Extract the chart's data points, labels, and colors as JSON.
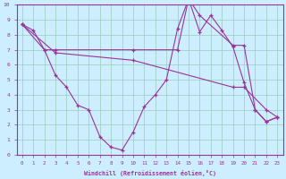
{
  "background_color": "#cceeff",
  "line_color": "#993399",
  "grid_color": "#99ccbb",
  "xlabel": "Windchill (Refroidissement éolien,°C)",
  "xlim": [
    -0.5,
    23.5
  ],
  "ylim": [
    0,
    10
  ],
  "xticks": [
    0,
    1,
    2,
    3,
    4,
    5,
    6,
    7,
    8,
    9,
    10,
    11,
    12,
    13,
    14,
    15,
    16,
    17,
    18,
    19,
    20,
    21,
    22,
    23
  ],
  "yticks": [
    0,
    1,
    2,
    3,
    4,
    5,
    6,
    7,
    8,
    9,
    10
  ],
  "series": [
    {
      "x": [
        0,
        1,
        2,
        3,
        4,
        5,
        6,
        7,
        8,
        9,
        10,
        11,
        12,
        13,
        14,
        15,
        16,
        17,
        18,
        19,
        20,
        21,
        22,
        23
      ],
      "y": [
        8.7,
        8.3,
        7.0,
        5.3,
        4.5,
        3.3,
        3.0,
        1.2,
        0.5,
        0.3,
        1.5,
        3.2,
        4.0,
        5.0,
        8.4,
        10.4,
        8.2,
        9.3,
        8.3,
        7.2,
        4.8,
        3.0,
        2.2,
        2.5
      ]
    },
    {
      "x": [
        0,
        2,
        3,
        10,
        14,
        15,
        16,
        19,
        20,
        21,
        22,
        23
      ],
      "y": [
        8.7,
        7.0,
        7.0,
        7.0,
        7.0,
        10.4,
        9.3,
        7.3,
        7.3,
        3.0,
        2.2,
        2.5
      ]
    },
    {
      "x": [
        0,
        3,
        10,
        19,
        20,
        22,
        23
      ],
      "y": [
        8.7,
        6.8,
        6.3,
        4.5,
        4.5,
        3.0,
        2.5
      ]
    }
  ]
}
